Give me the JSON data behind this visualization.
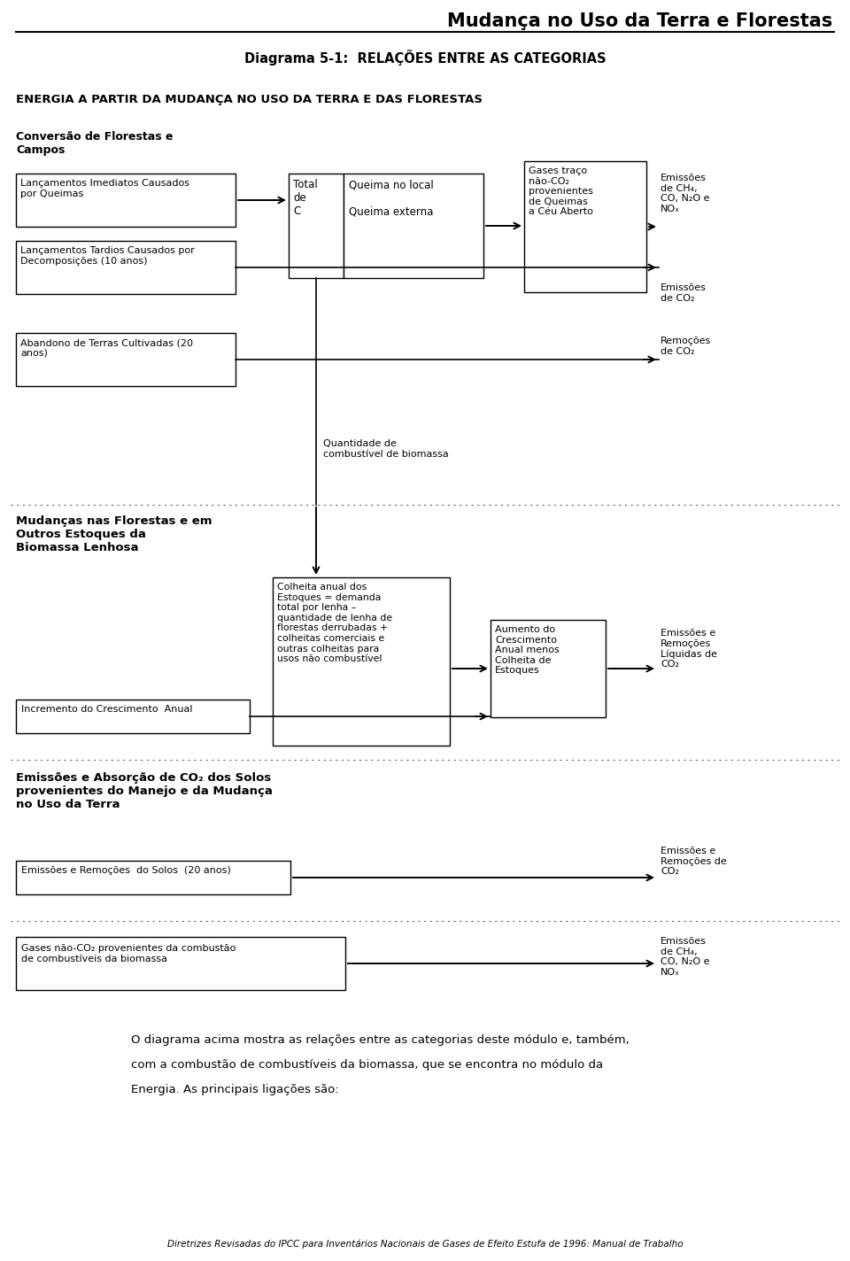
{
  "title": "Mudança no Uso da Terra e Florestas",
  "subtitle": "Diagrama 5-1:  RELAÇÕES ENTRE AS CATEGORIAS",
  "sec1_label": "ENERGIA A PARTIR DA MUDANÇA NO USO DA TERRA E DAS FLORESTAS",
  "group1_label": "Conversão de Florestas e\nCampos",
  "box1a": "Lançamentos Imediatos Causados\npor Queimas",
  "box1b": "Lançamentos Tardios Causados por\nDecomposições (10 anos)",
  "box1c": "Abandono de Terras Cultivadas (20\nanos)",
  "box_total_L": "Total\nde\nC",
  "box_total_R": "Queima no local\n\nQueima externa",
  "box_gases": "Gases traço\nnão-CO₂\nprovenientes\nde Queimas\na Céu Aberto",
  "emit1": "Emissões\nde CH₄,\nCO, N₂O e\nNOₓ",
  "emit2": "Emissões\nde CO₂",
  "remov1": "Remoções\nde CO₂",
  "biomassa": "Quantidade de\ncombustível de biomassa",
  "sec2_label": "Mudanças nas Florestas e em\nOutros Estoques da\nBiomassa Lenhosa",
  "box_colheita": "Colheita anual dos\nEstoques = demanda\ntotal por lenha –\nquantidade de lenha de\nflorestas derrubadas +\ncolheitas comerciais e\noutras colheitas para\nusos não combustível",
  "box_aumento": "Aumento do\nCrescimento\nAnual menos\nColheita de\nEstoques",
  "emit3": "Emissões e\nRemoções\nLíquidas de\nCO₂",
  "incr_label": "Incremento do Crescimento  Anual",
  "sec3_label": "Emissões e Absorção de CO₂ dos Solos\nprovenientes do Manejo e da Mudança\nno Uso da Terra",
  "box_solos": "Emissões e Remoções  do Solos  (20 anos)",
  "emit4": "Emissões e\nRemoções de\nCO₂",
  "sec4_label": "Gases não-CO₂ provenientes da combustão\nde combustíveis da biomassa",
  "emit5": "Emissões\nde CH₄,\nCO, N₂O e\nNOₓ",
  "footer1": "O diagrama acima mostra as relações entre as categorias deste módulo e, também,",
  "footer2": "com a combustão de combustíveis da biomassa, que se encontra no módulo da",
  "footer3": "Energia. As principais ligações são:",
  "footer_italic": "Diretrizes Revisadas do IPCC para Inventários Nacionais de Gases de Efeito Estufa de 1996: Manual de Trabalho"
}
